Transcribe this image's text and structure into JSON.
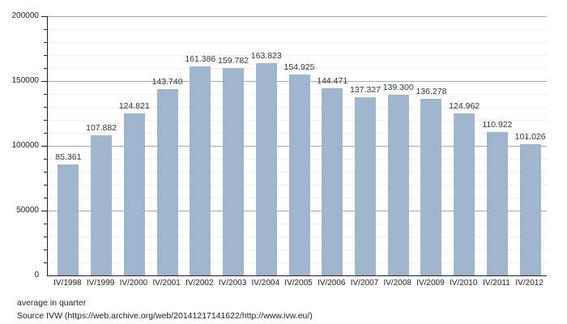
{
  "chart_data": {
    "type": "bar",
    "title": "",
    "categories": [
      "IV/1998",
      "IV/1999",
      "IV/2000",
      "IV/2001",
      "IV/2002",
      "IV/2003",
      "IV/2004",
      "IV/2005",
      "IV/2006",
      "IV/2007",
      "IV/2008",
      "IV/2009",
      "IV/2010",
      "IV/2011",
      "IV/2012"
    ],
    "values": [
      85361,
      107882,
      124821,
      143740,
      161386,
      159782,
      163823,
      154925,
      144471,
      137327,
      139300,
      136278,
      124962,
      110922,
      101026
    ],
    "value_labels": [
      "85.361",
      "107.882",
      "124.821",
      "143.740",
      "161.386",
      "159.782",
      "163.823",
      "154.925",
      "144.471",
      "137.327",
      "139.300",
      "136.278",
      "124.962",
      "110.922",
      "101.026"
    ],
    "xlabel": "",
    "ylabel": "",
    "ylim": [
      0,
      200000
    ],
    "y_major_step": 50000,
    "y_minor_step": 10000,
    "y_tick_labels": [
      "0",
      "50000",
      "100000",
      "150000",
      "200000"
    ],
    "grid": true,
    "legend_position": "none",
    "bar_color": "#9fb5cd",
    "major_grid_color": "#a8a8a8",
    "minor_grid_color": "#ececec",
    "axis_color": "#222222"
  },
  "footer": {
    "note": "average in quarter",
    "source": "Source IVW (https://web.archive.org/web/20141217141622/http://www.ivw.eu/)"
  }
}
